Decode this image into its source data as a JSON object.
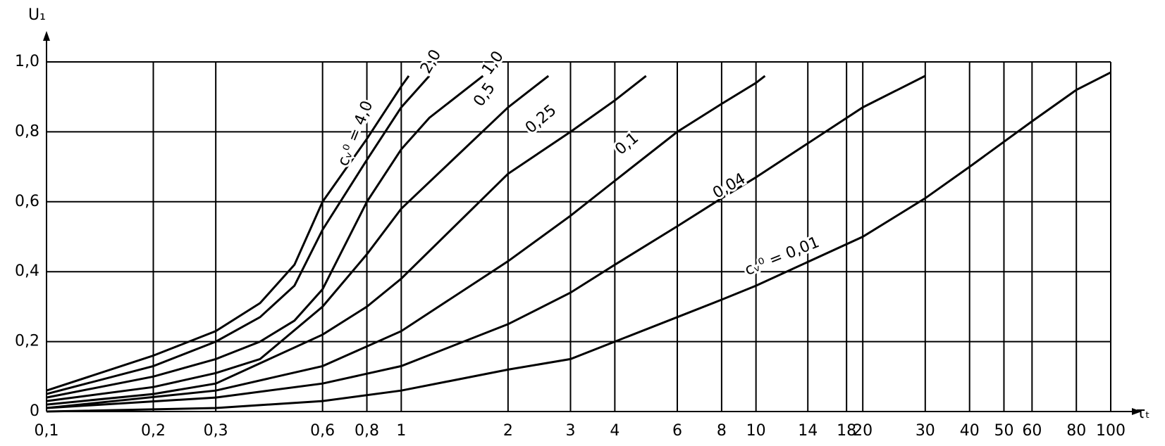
{
  "chart_data": {
    "type": "line",
    "x_label": "τₜ",
    "y_label": "U₁",
    "x_scale": "log",
    "grid": true,
    "color": "#000000",
    "xlim": [
      0.1,
      100
    ],
    "ylim": [
      0,
      1.0
    ],
    "xticks": [
      {
        "value": 0.1,
        "label": "0,1"
      },
      {
        "value": 0.2,
        "label": "0,2"
      },
      {
        "value": 0.3,
        "label": "0,3"
      },
      {
        "value": 0.6,
        "label": "0,6"
      },
      {
        "value": 0.8,
        "label": "0,8"
      },
      1,
      2,
      3,
      4,
      6,
      8,
      10,
      14,
      18,
      20,
      30,
      40,
      50,
      60,
      80,
      100
    ],
    "yticks": [
      0,
      {
        "value": 0.2,
        "label": "0,2"
      },
      {
        "value": 0.4,
        "label": "0,4"
      },
      {
        "value": 0.6,
        "label": "0,6"
      },
      {
        "value": 0.8,
        "label": "0,8"
      },
      {
        "value": 1.0,
        "label": "1,0"
      }
    ],
    "series": [
      {
        "name": "cᵥ⁰ = 4,0",
        "x": [
          0.1,
          0.2,
          0.3,
          0.4,
          0.5,
          0.6,
          0.8,
          1,
          1.05
        ],
        "values": [
          0.06,
          0.16,
          0.23,
          0.31,
          0.42,
          0.6,
          0.78,
          0.93,
          0.96
        ]
      },
      {
        "name": "2,0",
        "x": [
          0.1,
          0.2,
          0.3,
          0.4,
          0.5,
          0.6,
          0.8,
          1,
          1.2
        ],
        "values": [
          0.05,
          0.13,
          0.2,
          0.27,
          0.36,
          0.52,
          0.72,
          0.87,
          0.96
        ]
      },
      {
        "name": "1,0",
        "x": [
          0.1,
          0.2,
          0.3,
          0.4,
          0.5,
          0.6,
          0.8,
          1,
          1.2,
          1.7
        ],
        "values": [
          0.04,
          0.1,
          0.15,
          0.2,
          0.26,
          0.35,
          0.6,
          0.75,
          0.84,
          0.96
        ]
      },
      {
        "name": "0,5",
        "x": [
          0.1,
          0.2,
          0.3,
          0.4,
          0.6,
          0.8,
          1,
          2,
          2.6
        ],
        "values": [
          0.03,
          0.07,
          0.11,
          0.15,
          0.3,
          0.45,
          0.58,
          0.87,
          0.96
        ]
      },
      {
        "name": "0,25",
        "x": [
          0.1,
          0.2,
          0.3,
          0.6,
          0.8,
          1,
          2,
          3,
          4,
          4.9
        ],
        "values": [
          0.02,
          0.05,
          0.08,
          0.22,
          0.3,
          0.38,
          0.68,
          0.8,
          0.89,
          0.96
        ]
      },
      {
        "name": "0,1",
        "x": [
          0.1,
          0.3,
          0.6,
          1,
          2,
          3,
          4,
          6,
          8,
          10,
          10.6
        ],
        "values": [
          0.01,
          0.06,
          0.13,
          0.23,
          0.43,
          0.56,
          0.66,
          0.8,
          0.88,
          0.94,
          0.96
        ]
      },
      {
        "name": "0,04",
        "x": [
          0.1,
          0.3,
          0.6,
          1,
          2,
          3,
          4,
          6,
          8,
          10,
          20,
          30
        ],
        "values": [
          0.01,
          0.04,
          0.08,
          0.13,
          0.25,
          0.34,
          0.42,
          0.53,
          0.61,
          0.67,
          0.87,
          0.96
        ]
      },
      {
        "name": "cᵥ⁰ = 0,01",
        "x": [
          0.1,
          0.3,
          0.6,
          1,
          2,
          3,
          4,
          6,
          8,
          10,
          20,
          30,
          40,
          60,
          80,
          100
        ],
        "values": [
          0.0,
          0.01,
          0.03,
          0.06,
          0.12,
          0.15,
          0.2,
          0.27,
          0.32,
          0.36,
          0.5,
          0.61,
          0.7,
          0.83,
          0.92,
          0.97
        ]
      }
    ]
  }
}
